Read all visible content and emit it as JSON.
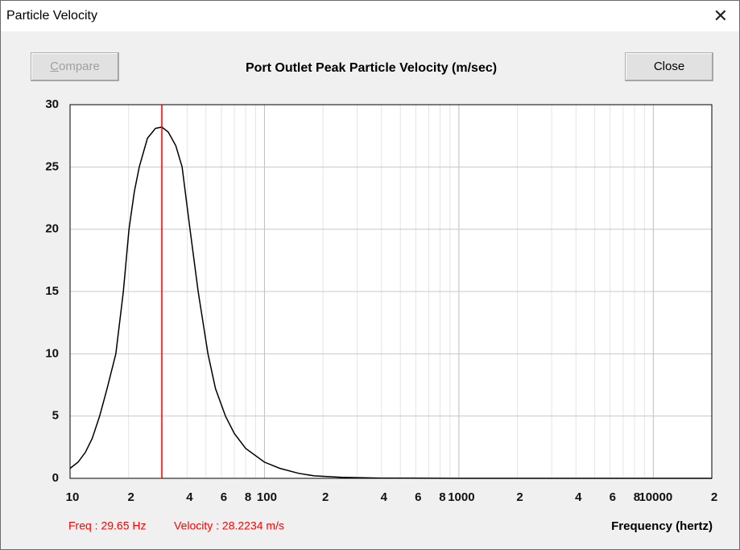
{
  "window": {
    "title": "Particle Velocity",
    "buttons": {
      "compare": "Compare",
      "close": "Close"
    }
  },
  "readout": {
    "freq": "Freq : 29.65 Hz",
    "velocity": "Velocity : 28.2234 m/s"
  },
  "chart_data": {
    "type": "line",
    "title": "Port Outlet Peak Particle Velocity (m/sec)",
    "x_label": "Frequency (hertz)",
    "xscale": "log",
    "xlim": [
      10,
      20000
    ],
    "ylim": [
      0,
      30
    ],
    "grid": true,
    "yticks": [
      0,
      5,
      10,
      15,
      20,
      25,
      30
    ],
    "xticks": [
      10,
      {
        "value": 20,
        "label": "2"
      },
      {
        "value": 40,
        "label": "4"
      },
      {
        "value": 60,
        "label": "6"
      },
      {
        "value": 80,
        "label": "8"
      },
      100,
      {
        "value": 200,
        "label": "2"
      },
      {
        "value": 400,
        "label": "4"
      },
      {
        "value": 600,
        "label": "6"
      },
      {
        "value": 800,
        "label": "8"
      },
      1000,
      {
        "value": 2000,
        "label": "2"
      },
      {
        "value": 4000,
        "label": "4"
      },
      {
        "value": 6000,
        "label": "6"
      },
      {
        "value": 8000,
        "label": "8"
      },
      10000,
      {
        "value": 20000,
        "label": "2"
      }
    ],
    "xgrid_major": [
      100,
      1000,
      10000
    ],
    "xgrid_minor": [
      20,
      30,
      40,
      50,
      60,
      70,
      80,
      90,
      200,
      300,
      400,
      500,
      600,
      700,
      800,
      900,
      2000,
      3000,
      4000,
      5000,
      6000,
      7000,
      8000,
      9000
    ],
    "cursor": {
      "x": 29.65,
      "color": "#ff0000"
    },
    "series": [
      {
        "color": "#000000",
        "x": [
          10,
          11,
          12,
          13,
          14.2,
          15.5,
          17.2,
          18.8,
          20.1,
          21.4,
          22.7,
          25,
          27.5,
          29.65,
          32,
          35,
          37.7,
          41.4,
          45.6,
          51.2,
          56,
          63,
          70,
          80,
          100,
          120,
          150,
          180,
          250,
          400,
          1000,
          3000,
          20000
        ],
        "values": [
          0.8,
          1.3,
          2.1,
          3.2,
          5,
          7.2,
          10,
          15,
          20,
          23,
          25,
          27.3,
          28.1,
          28.2,
          27.8,
          26.7,
          25,
          20,
          15,
          10,
          7.2,
          5,
          3.6,
          2.4,
          1.3,
          0.8,
          0.4,
          0.2,
          0.08,
          0.02,
          0,
          0,
          0
        ]
      }
    ]
  }
}
